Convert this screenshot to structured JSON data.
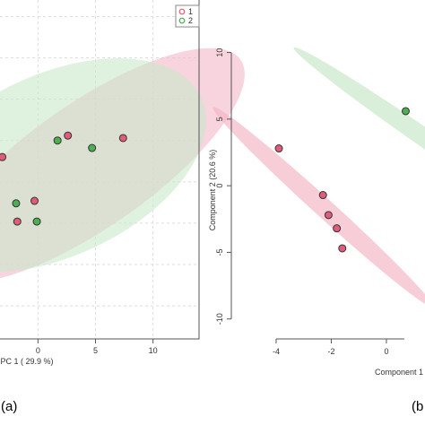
{
  "chart_data": [
    {
      "type": "scatter",
      "panel_label": "(a)",
      "xlabel": "PC 1 ( 29.9 %)",
      "x_ticks": [
        0,
        5,
        10
      ],
      "xlim": [
        -3.3,
        14
      ],
      "ylim": [
        -19,
        22
      ],
      "legend": {
        "position": "top-right",
        "entries": [
          {
            "label": "1",
            "color": "#e05c7a"
          },
          {
            "label": "2",
            "color": "#4caf50"
          }
        ]
      },
      "grid": true,
      "series": [
        {
          "name": "1",
          "color": "#e05c7a",
          "points": [
            [
              -3.1,
              3.0
            ],
            [
              -0.3,
              -2.3
            ],
            [
              -1.8,
              -4.8
            ],
            [
              2.6,
              5.6
            ],
            [
              7.4,
              5.3
            ]
          ]
        },
        {
          "name": "2",
          "color": "#4caf50",
          "points": [
            [
              -1.9,
              -2.6
            ],
            [
              -0.1,
              -4.8
            ],
            [
              1.7,
              5.0
            ],
            [
              4.7,
              4.1
            ]
          ]
        }
      ],
      "ellipses": [
        {
          "series": "1",
          "color": "#f4b8c8",
          "cx": 4.5,
          "cy": 2.0,
          "rx": 16,
          "ry": 7.5,
          "angle": 35
        },
        {
          "series": "2",
          "color": "#c9e8c9",
          "cx": 1.5,
          "cy": 2.0,
          "rx": 14,
          "ry": 11,
          "angle": 25
        }
      ]
    },
    {
      "type": "scatter",
      "panel_label": "(b",
      "xlabel": "Component 1",
      "ylabel": "Component 2 (20.6 %)",
      "x_ticks": [
        -4,
        -2,
        0
      ],
      "y_ticks": [
        -10,
        -5,
        0,
        5,
        10
      ],
      "xlim": [
        -5.3,
        1.4
      ],
      "ylim": [
        -11.5,
        13.0
      ],
      "grid": false,
      "series": [
        {
          "name": "1",
          "color": "#e05c7a",
          "points": [
            [
              -3.9,
              2.8
            ],
            [
              -2.3,
              -0.7
            ],
            [
              -2.1,
              -2.2
            ],
            [
              -1.8,
              -3.2
            ],
            [
              -1.6,
              -4.7
            ]
          ]
        },
        {
          "name": "2",
          "color": "#4caf50",
          "points": [
            [
              0.7,
              5.6
            ]
          ]
        }
      ],
      "ellipses": [
        {
          "series": "1",
          "color": "#f4b8c8",
          "cx": -2.3,
          "cy": -1.6,
          "rx": 8.5,
          "ry": 0.7,
          "angle": -62
        },
        {
          "series": "2",
          "color": "#c9e8c9",
          "cx": 1.8,
          "cy": 3.0,
          "rx": 9.0,
          "ry": 0.7,
          "angle": -55
        }
      ]
    }
  ]
}
